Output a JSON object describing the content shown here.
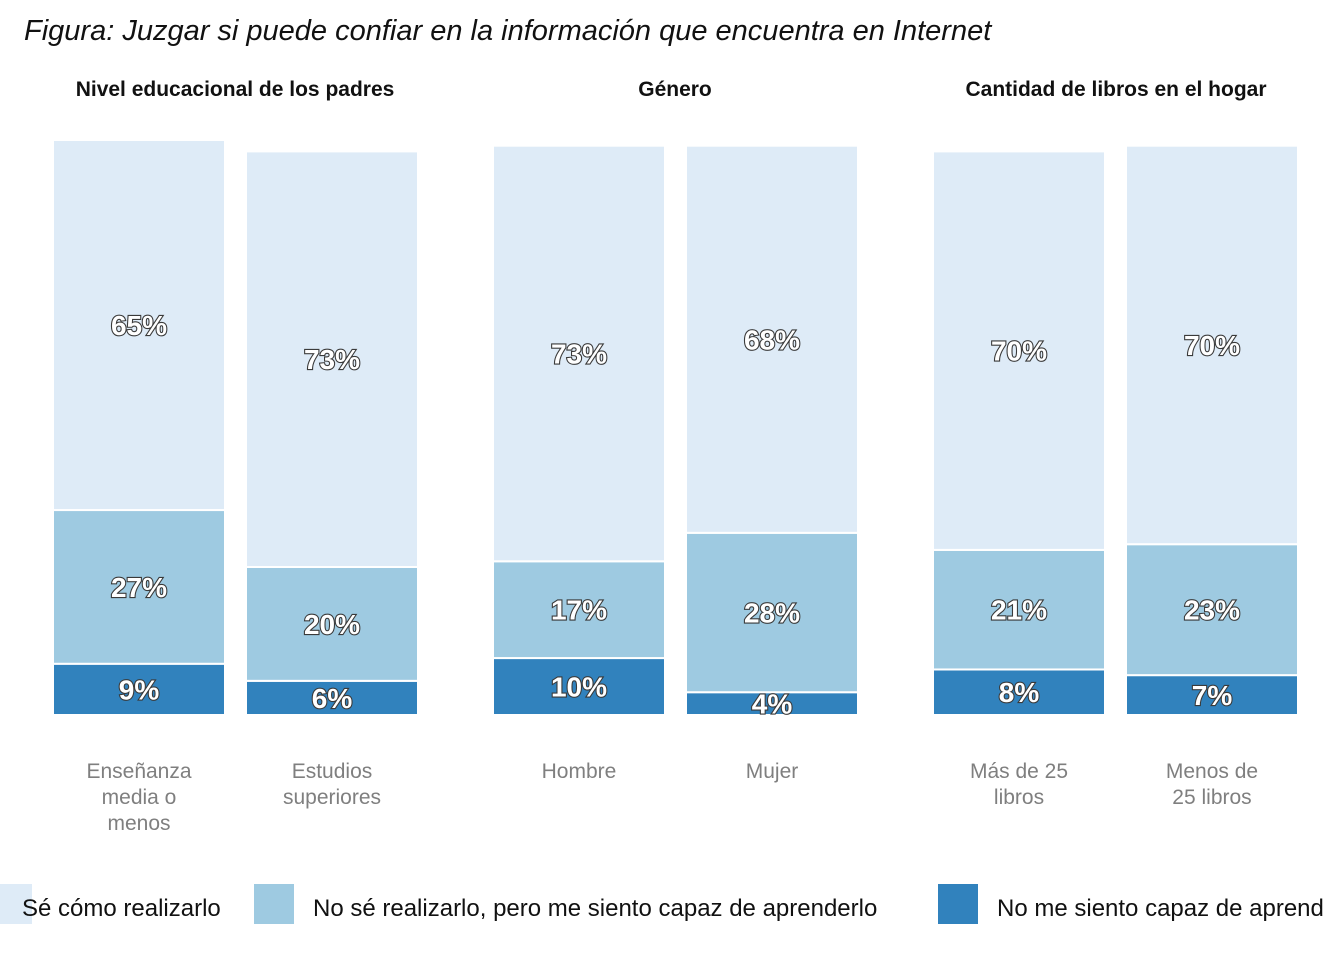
{
  "chart_data": {
    "type": "bar",
    "stacked": true,
    "title": "Figura: Juzgar si puede confiar en la información que encuentra en Internet",
    "panels": [
      {
        "title": "Nivel educacional de los padres",
        "categories": [
          "Enseñanza media o menos",
          "Estudios superiores"
        ],
        "category_lines": [
          [
            "Enseñanza",
            "media o",
            "menos"
          ],
          [
            "Estudios",
            "superiores"
          ]
        ]
      },
      {
        "title": "Género",
        "categories": [
          "Hombre",
          "Mujer"
        ],
        "category_lines": [
          [
            "Hombre"
          ],
          [
            "Mujer"
          ]
        ]
      },
      {
        "title": "Cantidad de libros en el hogar",
        "categories": [
          "Más de 25 libros",
          "Menos de 25 libros"
        ],
        "category_lines": [
          [
            "Más de 25",
            "libros"
          ],
          [
            "Menos de",
            "25 libros"
          ]
        ]
      }
    ],
    "series": [
      {
        "name": "Sé cómo realizarlo",
        "color": "#deebf7",
        "values": [
          65,
          73,
          73,
          68,
          70,
          70
        ],
        "labels": [
          "65%",
          "73%",
          "73%",
          "68%",
          "70%",
          "70%"
        ]
      },
      {
        "name": "No sé realizarlo, pero me siento capaz de aprenderlo",
        "color": "#9ecae1",
        "values": [
          27,
          20,
          17,
          28,
          21,
          23
        ],
        "labels": [
          "27%",
          "20%",
          "17%",
          "28%",
          "21%",
          "23%"
        ]
      },
      {
        "name": "No me siento capaz de aprenderlo",
        "color": "#3182bd",
        "values": [
          9,
          6,
          10,
          4,
          8,
          7
        ],
        "labels": [
          "9%",
          "6%",
          "10%",
          "4%",
          "8%",
          "7%"
        ]
      }
    ],
    "legend_visible_text": [
      "Sé cómo realizarlo",
      "No sé realizarlo, pero me siento capaz de aprenderlo",
      "No me siento capaz de aprend"
    ],
    "legend_position": "bottom",
    "grid": false,
    "ylim": [
      0,
      101
    ]
  }
}
